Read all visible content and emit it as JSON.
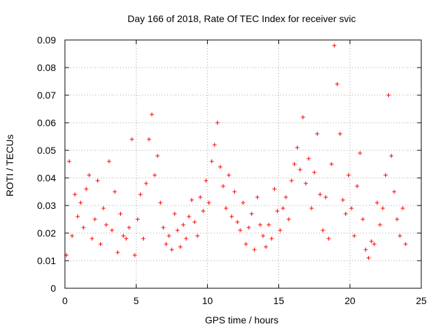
{
  "chart_data": {
    "type": "scatter",
    "title": "Day 166 of 2018, Rate Of TEC Index for receiver svic",
    "xlabel": "GPS time / hours",
    "ylabel": "ROTI / TECUs",
    "xlim": [
      0,
      25
    ],
    "ylim": [
      0,
      0.09
    ],
    "x_ticks": [
      0,
      5,
      10,
      15,
      20,
      25
    ],
    "y_ticks": [
      0,
      0.01,
      0.02,
      0.03,
      0.04,
      0.05,
      0.06,
      0.07,
      0.08,
      0.09
    ],
    "x_tick_labels": [
      "0",
      "5",
      "10",
      "15",
      "20",
      "25"
    ],
    "y_tick_labels": [
      "0",
      "0.01",
      "0.02",
      "0.03",
      "0.04",
      "0.05",
      "0.06",
      "0.07",
      "0.08",
      "0.09"
    ],
    "grid": true,
    "marker": "+",
    "color": "#ff0000",
    "series": [
      {
        "name": "ROTI",
        "x": [
          0.1,
          0.3,
          0.5,
          0.7,
          0.9,
          1.1,
          1.3,
          1.5,
          1.7,
          1.9,
          2.1,
          2.3,
          2.5,
          2.7,
          2.9,
          3.1,
          3.3,
          3.5,
          3.7,
          3.9,
          4.1,
          4.3,
          4.5,
          4.7,
          4.9,
          5.1,
          5.3,
          5.5,
          5.7,
          5.9,
          6.1,
          6.3,
          6.5,
          6.7,
          6.9,
          7.1,
          7.3,
          7.5,
          7.7,
          7.9,
          8.1,
          8.3,
          8.5,
          8.7,
          8.9,
          9.1,
          9.3,
          9.5,
          9.7,
          9.9,
          10.1,
          10.3,
          10.5,
          10.7,
          10.9,
          11.1,
          11.3,
          11.5,
          11.7,
          11.9,
          12.1,
          12.3,
          12.5,
          12.7,
          12.9,
          13.1,
          13.3,
          13.5,
          13.7,
          13.9,
          14.1,
          14.3,
          14.5,
          14.7,
          14.9,
          15.1,
          15.3,
          15.5,
          15.7,
          15.9,
          16.1,
          16.3,
          16.5,
          16.7,
          16.9,
          17.1,
          17.3,
          17.5,
          17.7,
          17.9,
          18.1,
          18.3,
          18.5,
          18.7,
          18.9,
          19.1,
          19.3,
          19.5,
          19.7,
          19.9,
          20.1,
          20.3,
          20.5,
          20.7,
          20.9,
          21.1,
          21.3,
          21.5,
          21.7,
          21.9,
          22.1,
          22.3,
          22.5,
          22.7,
          22.9,
          23.1,
          23.3,
          23.5,
          23.7,
          23.9
        ],
        "y": [
          0.012,
          0.046,
          0.019,
          0.034,
          0.026,
          0.031,
          0.022,
          0.036,
          0.041,
          0.018,
          0.025,
          0.039,
          0.016,
          0.029,
          0.023,
          0.046,
          0.021,
          0.035,
          0.013,
          0.027,
          0.019,
          0.018,
          0.022,
          0.054,
          0.012,
          0.025,
          0.034,
          0.018,
          0.038,
          0.054,
          0.063,
          0.041,
          0.048,
          0.031,
          0.022,
          0.016,
          0.019,
          0.014,
          0.027,
          0.021,
          0.015,
          0.023,
          0.018,
          0.026,
          0.032,
          0.024,
          0.019,
          0.033,
          0.028,
          0.039,
          0.031,
          0.046,
          0.052,
          0.06,
          0.044,
          0.037,
          0.029,
          0.041,
          0.026,
          0.035,
          0.024,
          0.021,
          0.031,
          0.016,
          0.022,
          0.027,
          0.014,
          0.033,
          0.023,
          0.019,
          0.015,
          0.023,
          0.018,
          0.036,
          0.028,
          0.021,
          0.029,
          0.033,
          0.025,
          0.039,
          0.045,
          0.051,
          0.043,
          0.062,
          0.038,
          0.047,
          0.029,
          0.042,
          0.056,
          0.034,
          0.021,
          0.033,
          0.018,
          0.045,
          0.088,
          0.074,
          0.056,
          0.032,
          0.027,
          0.041,
          0.029,
          0.019,
          0.037,
          0.049,
          0.025,
          0.014,
          0.011,
          0.017,
          0.016,
          0.031,
          0.023,
          0.029,
          0.041,
          0.07,
          0.048,
          0.035,
          0.025,
          0.019,
          0.029,
          0.016
        ]
      }
    ]
  }
}
